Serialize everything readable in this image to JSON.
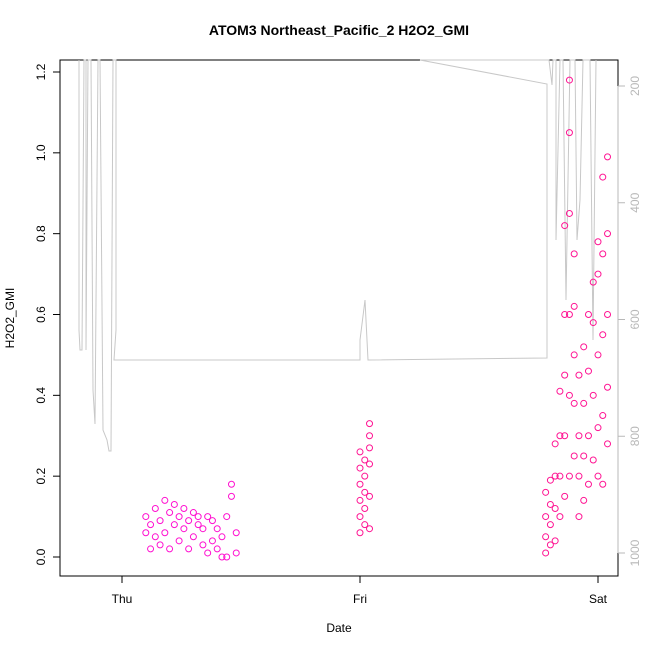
{
  "chart_data": {
    "type": "scatter",
    "title": "ATOM3 Northeast_Pacific_2 H2O2_GMI",
    "xlabel": "Date",
    "ylabel": "H2O2_GMI",
    "x_ticks": [
      "Thu",
      "Fri",
      "Sat"
    ],
    "ylim": [
      0,
      1.2
    ],
    "y_ticks": [
      "0.0",
      "0.2",
      "0.4",
      "0.6",
      "0.8",
      "1.0",
      "1.2"
    ],
    "y2_ticks": [
      "200",
      "400",
      "600",
      "800",
      "1000"
    ],
    "y2_range": [
      1000,
      170
    ],
    "colors": {
      "points": "#ff1493",
      "points_alt": "#ff10d0",
      "pressure_line": "#c8c8c8"
    },
    "grid": false,
    "series": [
      {
        "values": [
          [
            -0.9,
            0.06
          ],
          [
            -0.9,
            0.1
          ],
          [
            -0.88,
            0.02
          ],
          [
            -0.88,
            0.08
          ],
          [
            -0.86,
            0.05
          ],
          [
            -0.86,
            0.12
          ],
          [
            -0.84,
            0.03
          ],
          [
            -0.84,
            0.09
          ],
          [
            -0.82,
            0.14
          ],
          [
            -0.82,
            0.06
          ],
          [
            -0.8,
            0.11
          ],
          [
            -0.8,
            0.02
          ],
          [
            -0.78,
            0.08
          ],
          [
            -0.78,
            0.13
          ],
          [
            -0.76,
            0.04
          ],
          [
            -0.76,
            0.1
          ],
          [
            -0.74,
            0.07
          ],
          [
            -0.74,
            0.12
          ],
          [
            -0.72,
            0.02
          ],
          [
            -0.72,
            0.09
          ],
          [
            -0.7,
            0.05
          ],
          [
            -0.7,
            0.11
          ],
          [
            -0.68,
            0.08
          ],
          [
            -0.68,
            0.1
          ],
          [
            -0.66,
            0.03
          ],
          [
            -0.66,
            0.07
          ],
          [
            -0.64,
            0.1
          ],
          [
            -0.64,
            0.01
          ],
          [
            -0.62,
            0.04
          ],
          [
            -0.62,
            0.09
          ],
          [
            -0.6,
            0.02
          ],
          [
            -0.6,
            0.07
          ],
          [
            -0.58,
            0.0
          ],
          [
            -0.58,
            0.05
          ],
          [
            -0.56,
            0.0
          ],
          [
            -0.56,
            0.1
          ],
          [
            -0.54,
            0.15
          ],
          [
            -0.54,
            0.18
          ],
          [
            -0.52,
            0.01
          ],
          [
            -0.52,
            0.06
          ]
        ]
      },
      {
        "values": [
          [
            0.0,
            0.06
          ],
          [
            0.0,
            0.1
          ],
          [
            0.0,
            0.14
          ],
          [
            0.0,
            0.18
          ],
          [
            0.0,
            0.22
          ],
          [
            0.0,
            0.26
          ],
          [
            0.02,
            0.08
          ],
          [
            0.02,
            0.12
          ],
          [
            0.02,
            0.16
          ],
          [
            0.02,
            0.2
          ],
          [
            0.02,
            0.24
          ],
          [
            0.04,
            0.07
          ],
          [
            0.04,
            0.15
          ],
          [
            0.04,
            0.23
          ],
          [
            0.04,
            0.27
          ],
          [
            0.04,
            0.3
          ],
          [
            0.04,
            0.33
          ]
        ]
      },
      {
        "values": [
          [
            0.78,
            0.01
          ],
          [
            0.78,
            0.05
          ],
          [
            0.78,
            0.1
          ],
          [
            0.78,
            0.16
          ],
          [
            0.8,
            0.03
          ],
          [
            0.8,
            0.08
          ],
          [
            0.8,
            0.13
          ],
          [
            0.8,
            0.19
          ],
          [
            0.82,
            0.04
          ],
          [
            0.82,
            0.12
          ],
          [
            0.82,
            0.2
          ],
          [
            0.82,
            0.28
          ],
          [
            0.84,
            0.1
          ],
          [
            0.84,
            0.2
          ],
          [
            0.84,
            0.3
          ],
          [
            0.84,
            0.41
          ],
          [
            0.86,
            0.15
          ],
          [
            0.86,
            0.3
          ],
          [
            0.86,
            0.45
          ],
          [
            0.86,
            0.6
          ],
          [
            0.86,
            0.82
          ],
          [
            0.88,
            0.2
          ],
          [
            0.88,
            0.4
          ],
          [
            0.88,
            0.6
          ],
          [
            0.88,
            0.85
          ],
          [
            0.88,
            1.05
          ],
          [
            0.88,
            1.18
          ],
          [
            0.9,
            0.25
          ],
          [
            0.9,
            0.38
          ],
          [
            0.9,
            0.5
          ],
          [
            0.9,
            0.62
          ],
          [
            0.9,
            0.75
          ],
          [
            0.92,
            0.1
          ],
          [
            0.92,
            0.2
          ],
          [
            0.92,
            0.3
          ],
          [
            0.92,
            0.45
          ],
          [
            0.94,
            0.14
          ],
          [
            0.94,
            0.25
          ],
          [
            0.94,
            0.38
          ],
          [
            0.94,
            0.52
          ],
          [
            0.96,
            0.18
          ],
          [
            0.96,
            0.3
          ],
          [
            0.96,
            0.46
          ],
          [
            0.96,
            0.6
          ],
          [
            0.98,
            0.24
          ],
          [
            0.98,
            0.4
          ],
          [
            0.98,
            0.58
          ],
          [
            0.98,
            0.68
          ],
          [
            1.0,
            0.2
          ],
          [
            1.0,
            0.32
          ],
          [
            1.0,
            0.5
          ],
          [
            1.0,
            0.7
          ],
          [
            1.0,
            0.78
          ],
          [
            1.02,
            0.18
          ],
          [
            1.02,
            0.35
          ],
          [
            1.02,
            0.55
          ],
          [
            1.02,
            0.75
          ],
          [
            1.02,
            0.94
          ],
          [
            1.04,
            0.28
          ],
          [
            1.04,
            0.42
          ],
          [
            1.04,
            0.6
          ],
          [
            1.04,
            0.8
          ],
          [
            1.04,
            0.99
          ]
        ]
      }
    ]
  }
}
